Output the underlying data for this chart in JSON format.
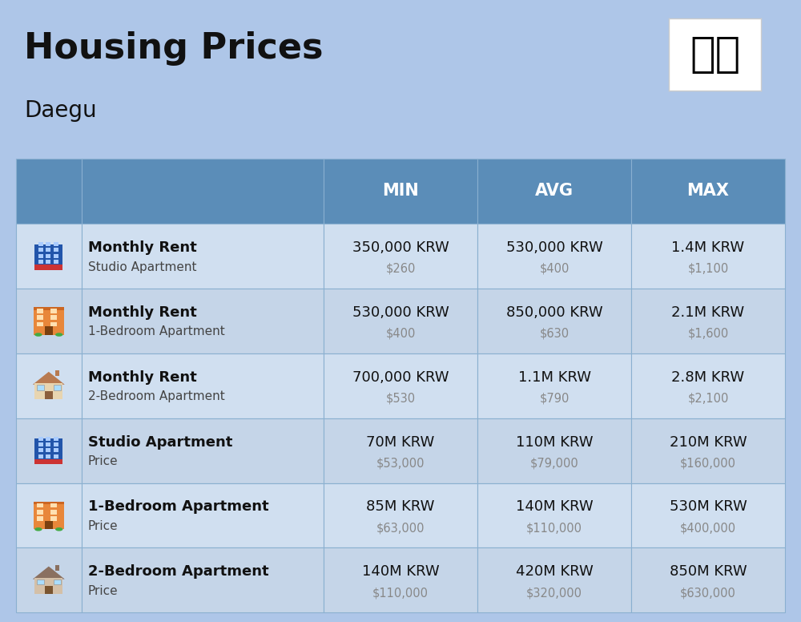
{
  "title": "Housing Prices",
  "subtitle": "Daegu",
  "background_color": "#aec6e8",
  "header_bg_color": "#5b8db8",
  "header_text_color": "#ffffff",
  "row_bg_color_light": "#d0dff0",
  "row_bg_color_dark": "#c5d5e8",
  "cell_line_color": "#8ab0d0",
  "rows": [
    {
      "icon_type": "studio_blue",
      "label_bold": "Monthly Rent",
      "label_normal": "Studio Apartment",
      "min_main": "350,000 KRW",
      "min_sub": "$260",
      "avg_main": "530,000 KRW",
      "avg_sub": "$400",
      "max_main": "1.4M KRW",
      "max_sub": "$1,100"
    },
    {
      "icon_type": "apartment_orange",
      "label_bold": "Monthly Rent",
      "label_normal": "1-Bedroom Apartment",
      "min_main": "530,000 KRW",
      "min_sub": "$400",
      "avg_main": "850,000 KRW",
      "avg_sub": "$630",
      "max_main": "2.1M KRW",
      "max_sub": "$1,600"
    },
    {
      "icon_type": "house_beige",
      "label_bold": "Monthly Rent",
      "label_normal": "2-Bedroom Apartment",
      "min_main": "700,000 KRW",
      "min_sub": "$530",
      "avg_main": "1.1M KRW",
      "avg_sub": "$790",
      "max_main": "2.8M KRW",
      "max_sub": "$2,100"
    },
    {
      "icon_type": "studio_blue",
      "label_bold": "Studio Apartment",
      "label_normal": "Price",
      "min_main": "70M KRW",
      "min_sub": "$53,000",
      "avg_main": "110M KRW",
      "avg_sub": "$79,000",
      "max_main": "210M KRW",
      "max_sub": "$160,000"
    },
    {
      "icon_type": "apartment_orange",
      "label_bold": "1-Bedroom Apartment",
      "label_normal": "Price",
      "min_main": "85M KRW",
      "min_sub": "$63,000",
      "avg_main": "140M KRW",
      "avg_sub": "$110,000",
      "max_main": "530M KRW",
      "max_sub": "$400,000"
    },
    {
      "icon_type": "house_brown",
      "label_bold": "2-Bedroom Apartment",
      "label_normal": "Price",
      "min_main": "140M KRW",
      "min_sub": "$110,000",
      "avg_main": "420M KRW",
      "avg_sub": "$320,000",
      "max_main": "850M KRW",
      "max_sub": "$630,000"
    }
  ]
}
